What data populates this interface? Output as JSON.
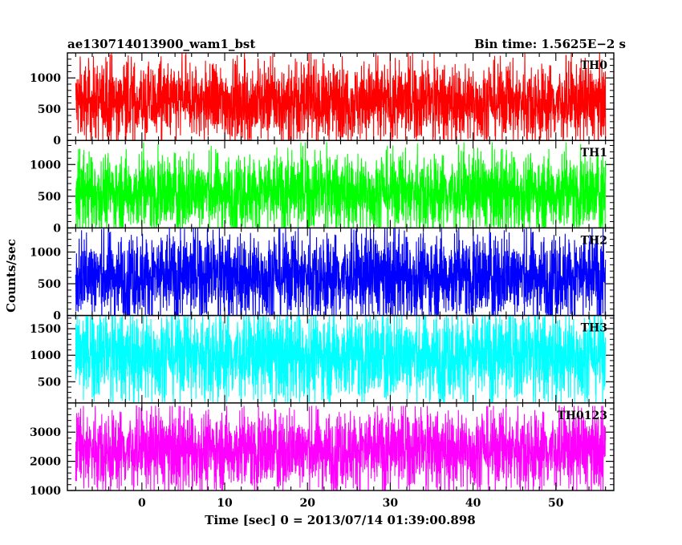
{
  "header": {
    "left_title": "ae130714013900_wam1_bst",
    "right_title": "Bin time: 1.5625E−2 s"
  },
  "chart_data": {
    "type": "line",
    "xlabel": "Time [sec] 0 = 2013/07/14 01:39:00.898",
    "ylabel": "Counts/sec",
    "xlim": [
      -9,
      57
    ],
    "x_ticks": [
      0,
      10,
      20,
      30,
      40,
      50
    ],
    "x_range_data": [
      -8,
      56
    ],
    "bin_time_s": 0.015625,
    "panels": [
      {
        "name": "TH0",
        "color": "#ff0000",
        "ylim": [
          0,
          1400
        ],
        "y_ticks": [
          0,
          500,
          1000
        ],
        "band": {
          "low": 120,
          "mean": 610,
          "high": 1100
        },
        "peak": 1400
      },
      {
        "name": "TH1",
        "color": "#00ff00",
        "ylim": [
          0,
          1380
        ],
        "y_ticks": [
          0,
          500,
          1000
        ],
        "band": {
          "low": 80,
          "mean": 560,
          "high": 1050
        },
        "peak": 1350
      },
      {
        "name": "TH2",
        "color": "#0000ff",
        "ylim": [
          0,
          1380
        ],
        "y_ticks": [
          0,
          500,
          1000
        ],
        "band": {
          "low": 120,
          "mean": 620,
          "high": 1200
        },
        "peak": 1380
      },
      {
        "name": "TH3",
        "color": "#00ffff",
        "ylim": [
          100,
          1750
        ],
        "y_ticks": [
          500,
          1000,
          1500
        ],
        "band": {
          "low": 300,
          "mean": 1000,
          "high": 1650
        },
        "peak": 1750
      },
      {
        "name": "TH0123",
        "color": "#ff00ff",
        "ylim": [
          1000,
          4000
        ],
        "y_ticks": [
          1000,
          2000,
          3000
        ],
        "band": {
          "low": 1350,
          "mean": 2400,
          "high": 3500
        },
        "peak": 3900
      }
    ]
  }
}
